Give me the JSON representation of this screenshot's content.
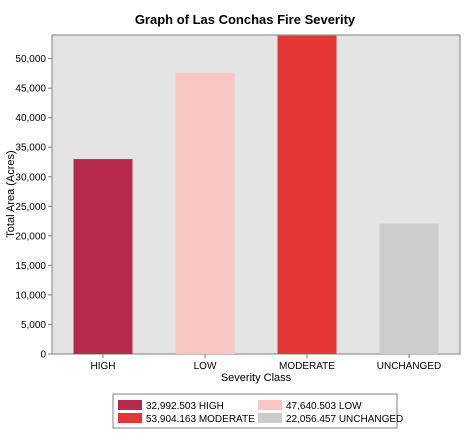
{
  "chart_data": {
    "type": "bar",
    "title": "Graph of Las Conchas Fire Severity",
    "xlabel": "Severity Class",
    "ylabel": "Total Area (Acres)",
    "ylim": [
      0,
      54000
    ],
    "yticks": [
      0,
      5000,
      10000,
      15000,
      20000,
      25000,
      30000,
      35000,
      40000,
      45000,
      50000
    ],
    "ytick_labels": [
      "0",
      "5,000",
      "10,000",
      "15,000",
      "20,000",
      "25,000",
      "30,000",
      "35,000",
      "40,000",
      "45,000",
      "50,000"
    ],
    "categories": [
      "HIGH",
      "LOW",
      "MODERATE",
      "UNCHANGED"
    ],
    "values": [
      32992.503,
      47640.503,
      53904.163,
      22056.457
    ],
    "colors": [
      "#b5294a",
      "#f8c7c4",
      "#e63535",
      "#cccccc"
    ],
    "grid": false,
    "legend_position": "bottom",
    "legend": [
      {
        "label": "32,992.503 HIGH",
        "color": "#b5294a"
      },
      {
        "label": "47,640.503 LOW",
        "color": "#f8c7c4"
      },
      {
        "label": "53,904.163 MODERATE",
        "color": "#e63535"
      },
      {
        "label": "22,056.457 UNCHANGED",
        "color": "#cccccc"
      }
    ],
    "plot_background": "#e4e4e4"
  }
}
